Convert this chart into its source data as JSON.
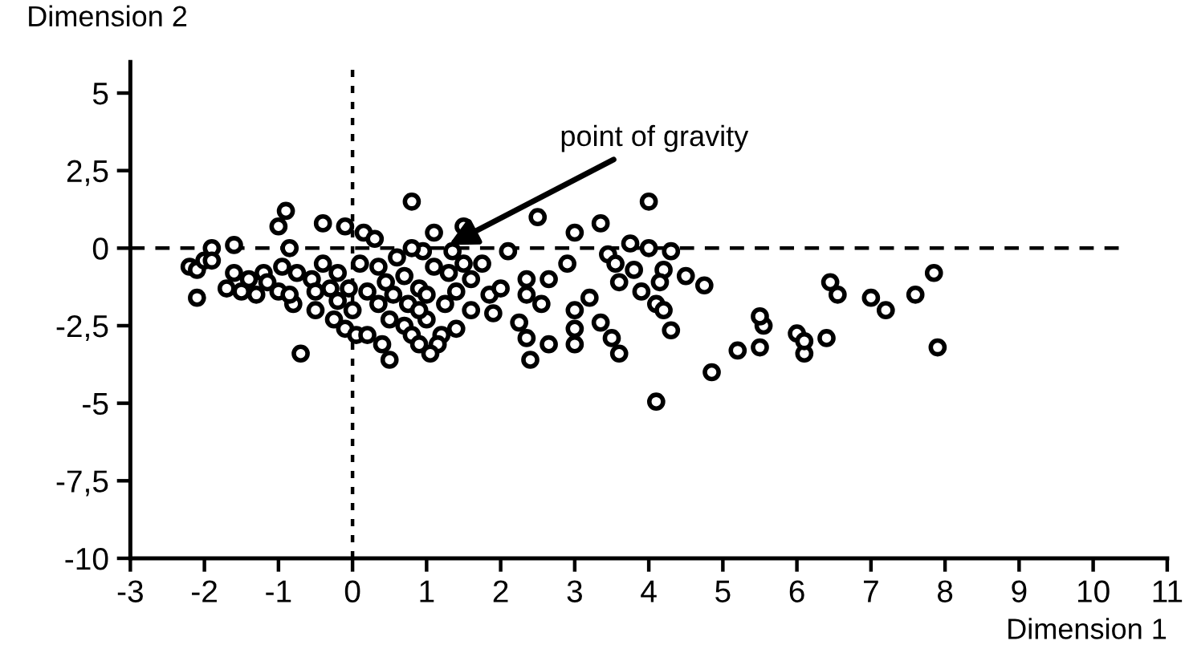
{
  "chart_data": {
    "type": "scatter",
    "xlabel": "Dimension 1",
    "ylabel": "Dimension 2",
    "xlim": [
      -3,
      11
    ],
    "ylim": [
      -10,
      6
    ],
    "xticks": [
      -3,
      -2,
      -1,
      0,
      1,
      2,
      3,
      4,
      5,
      6,
      7,
      8,
      9,
      10,
      11
    ],
    "yticks": [
      {
        "value": 5,
        "label": "5"
      },
      {
        "value": 2.5,
        "label": "2,5"
      },
      {
        "value": 0,
        "label": "0"
      },
      {
        "value": -2.5,
        "label": "-2,5"
      },
      {
        "value": -5,
        "label": "-5"
      },
      {
        "value": -7.5,
        "label": "-7,5"
      },
      {
        "value": -10,
        "label": "-10"
      }
    ],
    "grid": false,
    "marker": "circle",
    "ref_lines": [
      {
        "axis": "x",
        "value": 0,
        "line_style": "dotted",
        "color": "#000000"
      },
      {
        "axis": "y",
        "value": 0,
        "line_style": "dashed",
        "color": "#000000"
      }
    ],
    "annotations": [
      {
        "text": "point of gravity",
        "x": 1.3,
        "y": 0.1
      }
    ],
    "series": [
      {
        "color": "#000000",
        "x": [
          -2.2,
          -2.1,
          -2.0,
          -2.1,
          -1.9,
          -1.6,
          -0.9,
          -1.0,
          -0.4,
          -0.1,
          0.15,
          0.3,
          0.8,
          0.95,
          1.5,
          1.1,
          1.35,
          0.6,
          0.8,
          1.1,
          0.7,
          0.9,
          0.45,
          0.2,
          -0.2,
          -0.4,
          -0.55,
          -0.75,
          -0.95,
          -1.2,
          -1.4,
          -1.6,
          -1.7,
          -1.5,
          -1.3,
          -1.0,
          -0.8,
          -0.5,
          -0.25,
          -0.1,
          0.05,
          0.2,
          -0.2,
          0.0,
          0.35,
          0.5,
          0.7,
          0.8,
          0.9,
          1.0,
          1.0,
          1.25,
          1.4,
          1.6,
          1.75,
          1.85,
          2.0,
          1.6,
          1.4,
          1.2,
          1.15,
          -0.7,
          0.5,
          1.05,
          0.1,
          0.35,
          0.55,
          -0.85,
          -0.3,
          -0.05,
          0.4,
          1.3,
          1.5,
          0.75,
          0.9,
          -0.5,
          -1.15,
          -1.9,
          -0.85,
          2.1,
          2.5,
          3.0,
          3.35,
          4.0,
          2.9,
          3.45,
          3.75,
          4.0,
          4.3,
          3.55,
          3.8,
          3.6,
          4.2,
          4.5,
          4.15,
          4.75,
          3.9,
          4.1,
          4.2,
          4.3,
          2.35,
          2.65,
          2.35,
          2.55,
          3.2,
          3.0,
          3.0,
          3.0,
          2.25,
          2.35,
          2.65,
          2.4,
          3.35,
          3.5,
          3.6,
          4.85,
          4.1,
          5.2,
          5.5,
          5.55,
          5.5,
          6.0,
          6.1,
          6.1,
          6.4,
          6.45,
          6.55,
          7.0,
          7.2,
          7.6,
          7.85,
          7.9,
          1.9
        ],
        "values": [
          -0.6,
          -0.7,
          -0.4,
          -1.6,
          0.0,
          0.1,
          1.2,
          0.7,
          0.8,
          0.7,
          0.5,
          0.3,
          1.5,
          -0.1,
          0.7,
          0.5,
          -0.1,
          -0.3,
          0.0,
          -0.6,
          -0.9,
          -1.3,
          -1.1,
          -1.4,
          -0.8,
          -0.5,
          -1.0,
          -0.8,
          -0.6,
          -0.8,
          -1.0,
          -0.8,
          -1.3,
          -1.4,
          -1.5,
          -1.4,
          -1.8,
          -2.0,
          -2.3,
          -2.6,
          -2.8,
          -2.8,
          -1.7,
          -2.0,
          -1.8,
          -2.3,
          -2.5,
          -2.8,
          -3.1,
          -2.3,
          -1.5,
          -1.8,
          -1.4,
          -1.0,
          -0.5,
          -1.5,
          -1.3,
          -2.0,
          -2.6,
          -2.8,
          -3.1,
          -3.4,
          -3.6,
          -3.4,
          -0.5,
          -0.6,
          -1.5,
          -1.5,
          -1.3,
          -1.3,
          -3.1,
          -0.8,
          -0.5,
          -1.8,
          -2.0,
          -1.4,
          -1.1,
          -0.4,
          0.0,
          -0.1,
          1.0,
          0.5,
          0.8,
          1.5,
          -0.5,
          -0.2,
          0.15,
          0.0,
          -0.1,
          -0.5,
          -0.7,
          -1.1,
          -0.7,
          -0.9,
          -1.1,
          -1.2,
          -1.4,
          -1.8,
          -2.0,
          -2.65,
          -1.0,
          -1.0,
          -1.5,
          -1.8,
          -1.6,
          -2.0,
          -2.6,
          -3.1,
          -2.4,
          -2.9,
          -3.1,
          -3.6,
          -2.4,
          -2.9,
          -3.4,
          -4.0,
          -4.95,
          -3.3,
          -3.2,
          -2.5,
          -2.2,
          -2.75,
          -3.4,
          -3.0,
          -2.9,
          -1.1,
          -1.5,
          -1.6,
          -2.0,
          -1.5,
          -0.8,
          -3.2,
          -2.1
        ]
      }
    ]
  }
}
